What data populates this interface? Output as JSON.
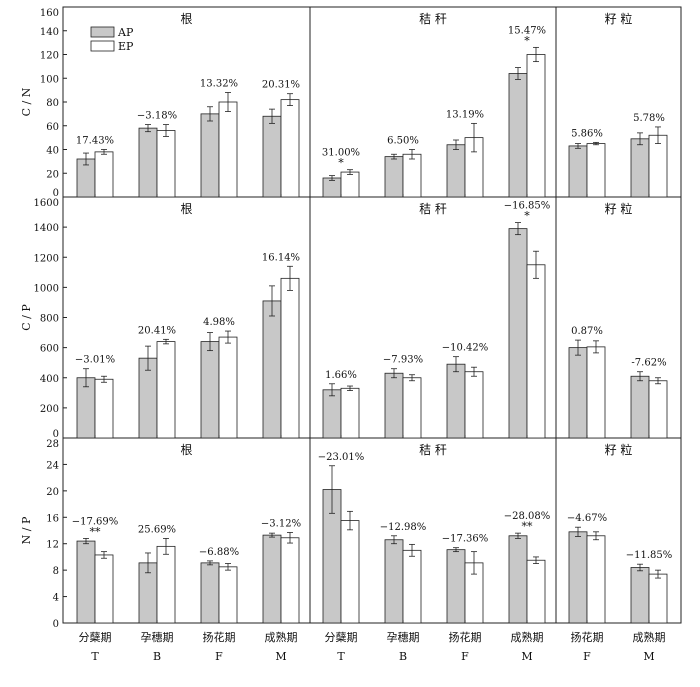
{
  "legend": {
    "ap": "AP",
    "ep": "EP"
  },
  "colors": {
    "ap": "#c8c8c8",
    "ep": "#ffffff",
    "axis": "#222222"
  },
  "x_labels_cn": [
    "分蘖期",
    "孕穗期",
    "扬花期",
    "成熟期",
    "分蘖期",
    "孕穗期",
    "扬花期",
    "成熟期",
    "扬花期",
    "成熟期"
  ],
  "x_labels_en": [
    "T",
    "B",
    "F",
    "M",
    "T",
    "B",
    "F",
    "M",
    "F",
    "M"
  ],
  "chart_data": [
    {
      "type": "bar",
      "ylabel": "C / N",
      "ylim": [
        0,
        160
      ],
      "yticks": [
        0,
        20,
        40,
        60,
        80,
        100,
        120,
        140,
        160
      ],
      "panels": [
        {
          "title": "根",
          "categories": [
            "T",
            "B",
            "F",
            "M"
          ],
          "series": [
            {
              "name": "AP",
              "values": [
                32,
                58,
                70,
                68
              ],
              "errors": [
                5,
                3,
                6,
                6
              ]
            },
            {
              "name": "EP",
              "values": [
                38,
                56,
                80,
                82
              ],
              "errors": [
                2,
                5,
                8,
                5
              ]
            }
          ],
          "labels": [
            "17.43%",
            "−3.18%",
            "13.32%",
            "20.31%"
          ],
          "sig": [
            "",
            "",
            "",
            ""
          ]
        },
        {
          "title": "秸 秆",
          "categories": [
            "T",
            "B",
            "F",
            "M"
          ],
          "series": [
            {
              "name": "AP",
              "values": [
                16,
                34,
                44,
                104
              ],
              "errors": [
                2,
                2,
                4,
                5
              ]
            },
            {
              "name": "EP",
              "values": [
                21,
                36,
                50,
                120
              ],
              "errors": [
                2,
                4,
                12,
                6
              ]
            }
          ],
          "labels": [
            "31.00%",
            "6.50%",
            "13.19%",
            "15.47%"
          ],
          "sig": [
            "*",
            "",
            "",
            "*"
          ]
        },
        {
          "title": "籽 粒",
          "categories": [
            "F",
            "M"
          ],
          "series": [
            {
              "name": "AP",
              "values": [
                43,
                49
              ],
              "errors": [
                2,
                5
              ]
            },
            {
              "name": "EP",
              "values": [
                45,
                52
              ],
              "errors": [
                1,
                7
              ]
            }
          ],
          "labels": [
            "5.86%",
            "5.78%"
          ],
          "sig": [
            "",
            ""
          ]
        }
      ]
    },
    {
      "type": "bar",
      "ylabel": "C / P",
      "ylim": [
        0,
        1600
      ],
      "yticks": [
        0,
        200,
        400,
        600,
        800,
        1000,
        1200,
        1400,
        1600
      ],
      "panels": [
        {
          "title": "根",
          "categories": [
            "T",
            "B",
            "F",
            "M"
          ],
          "series": [
            {
              "name": "AP",
              "values": [
                400,
                530,
                640,
                910
              ],
              "errors": [
                60,
                80,
                60,
                100
              ]
            },
            {
              "name": "EP",
              "values": [
                390,
                640,
                670,
                1060
              ],
              "errors": [
                20,
                15,
                40,
                80
              ]
            }
          ],
          "labels": [
            "−3.01%",
            "20.41%",
            "4.98%",
            "16.14%"
          ],
          "sig": [
            "",
            "",
            "",
            ""
          ]
        },
        {
          "title": "秸 秆",
          "categories": [
            "T",
            "B",
            "F",
            "M"
          ],
          "series": [
            {
              "name": "AP",
              "values": [
                320,
                430,
                490,
                1390
              ],
              "errors": [
                40,
                30,
                50,
                40
              ]
            },
            {
              "name": "EP",
              "values": [
                330,
                400,
                440,
                1150
              ],
              "errors": [
                15,
                20,
                30,
                90
              ]
            }
          ],
          "labels": [
            "1.66%",
            "−7.93%",
            "−10.42%",
            "−16.85%"
          ],
          "sig": [
            "",
            "",
            "",
            "*"
          ]
        },
        {
          "title": "籽 粒",
          "categories": [
            "F",
            "M"
          ],
          "series": [
            {
              "name": "AP",
              "values": [
                600,
                410
              ],
              "errors": [
                50,
                30
              ]
            },
            {
              "name": "EP",
              "values": [
                605,
                380
              ],
              "errors": [
                40,
                20
              ]
            }
          ],
          "labels": [
            "0.87%",
            "-7.62%"
          ],
          "sig": [
            "",
            ""
          ]
        }
      ]
    },
    {
      "type": "bar",
      "ylabel": "N / P",
      "ylim": [
        0,
        28
      ],
      "yticks": [
        0,
        4,
        8,
        12,
        16,
        20,
        24,
        28
      ],
      "panels": [
        {
          "title": "根",
          "categories": [
            "T",
            "B",
            "F",
            "M"
          ],
          "series": [
            {
              "name": "AP",
              "values": [
                12.4,
                9.1,
                9.1,
                13.3
              ],
              "errors": [
                0.4,
                1.5,
                0.3,
                0.3
              ]
            },
            {
              "name": "EP",
              "values": [
                10.3,
                11.6,
                8.5,
                12.9
              ],
              "errors": [
                0.5,
                1.2,
                0.5,
                0.8
              ]
            }
          ],
          "labels": [
            "−17.69%",
            "25.69%",
            "−6.88%",
            "−3.12%"
          ],
          "sig": [
            "**",
            "",
            "",
            ""
          ]
        },
        {
          "title": "秸 秆",
          "categories": [
            "T",
            "B",
            "F",
            "M"
          ],
          "series": [
            {
              "name": "AP",
              "values": [
                20.2,
                12.6,
                11.1,
                13.2
              ],
              "errors": [
                3.6,
                0.6,
                0.3,
                0.4
              ]
            },
            {
              "name": "EP",
              "values": [
                15.5,
                11.0,
                9.1,
                9.5
              ],
              "errors": [
                1.4,
                0.9,
                1.7,
                0.5
              ]
            }
          ],
          "labels": [
            "−23.01%",
            "−12.98%",
            "−17.36%",
            "−28.08%"
          ],
          "sig": [
            "",
            "",
            "",
            "**"
          ]
        },
        {
          "title": "籽 粒",
          "categories": [
            "F",
            "M"
          ],
          "series": [
            {
              "name": "AP",
              "values": [
                13.8,
                8.4
              ],
              "errors": [
                0.7,
                0.5
              ]
            },
            {
              "name": "EP",
              "values": [
                13.2,
                7.4
              ],
              "errors": [
                0.6,
                0.6
              ]
            }
          ],
          "labels": [
            "−4.67%",
            "−11.85%"
          ],
          "sig": [
            "",
            ""
          ]
        }
      ]
    }
  ]
}
